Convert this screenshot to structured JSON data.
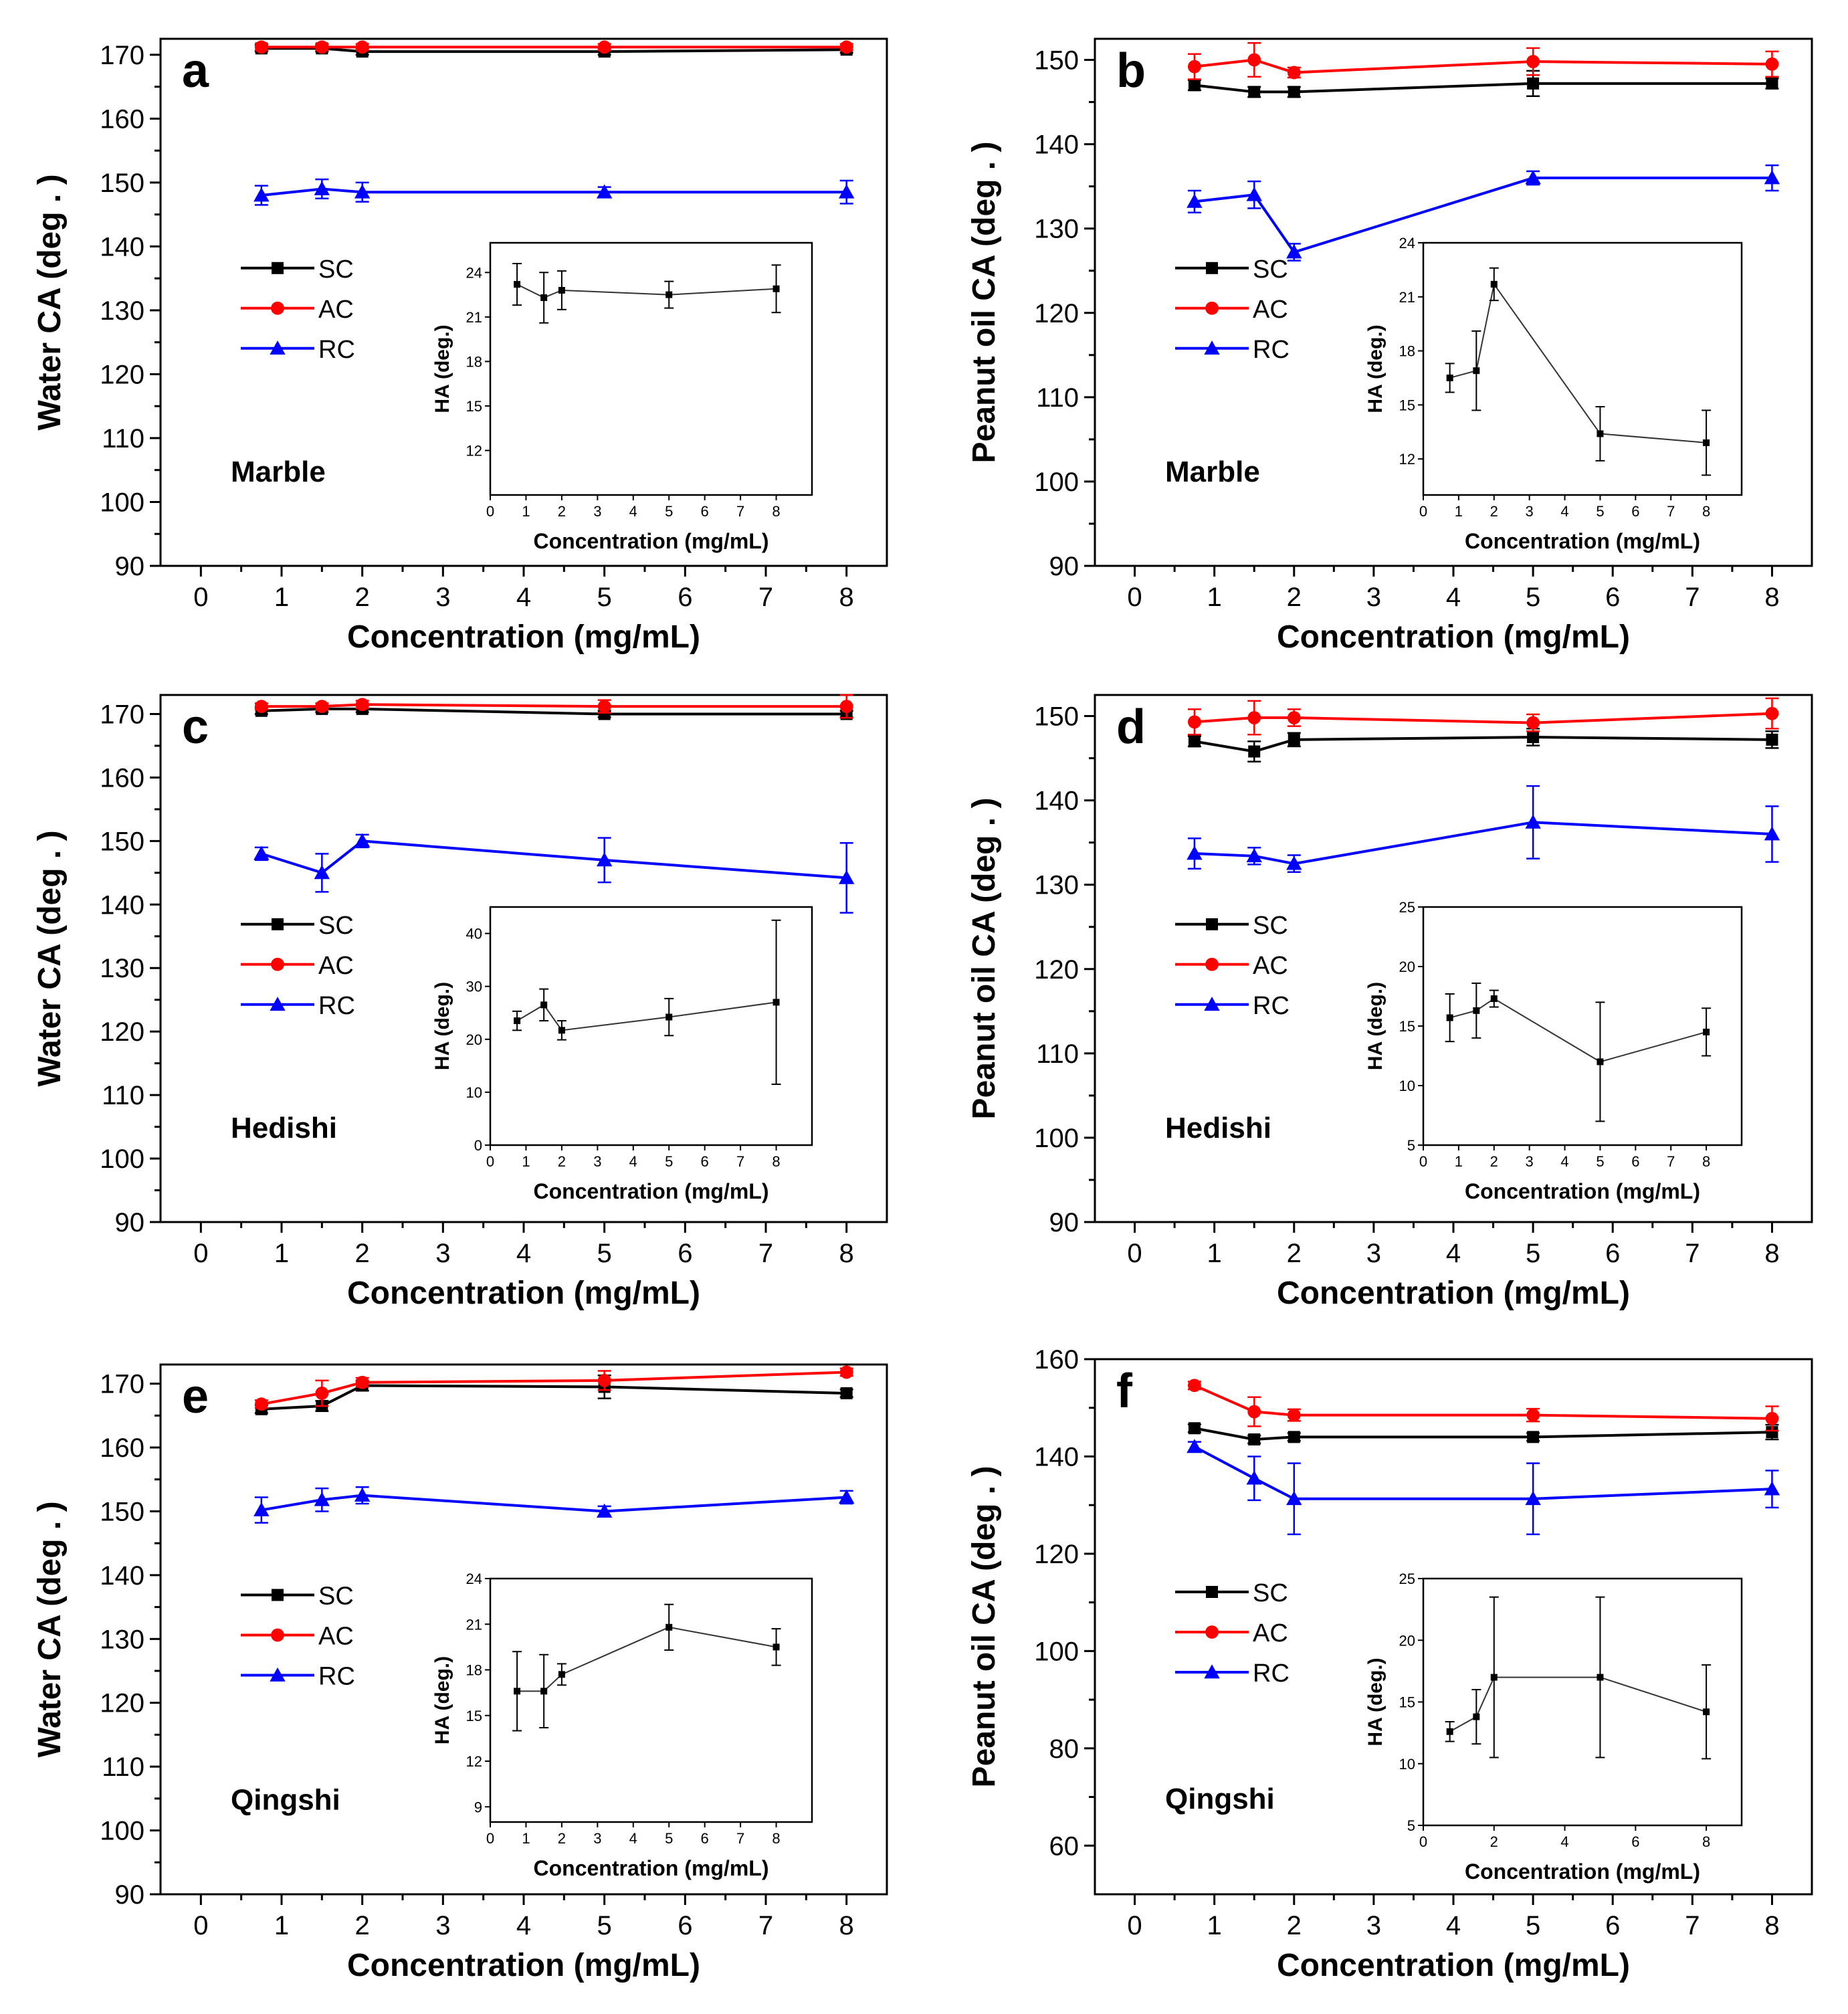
{
  "figure": {
    "title": "",
    "legend_labels": [
      "SC",
      "AC",
      "RC"
    ],
    "series_colors": {
      "SC": "#000000",
      "AC": "#ff0000",
      "RC": "#0000ff"
    },
    "inset_color": "#333333"
  },
  "chart_data": [
    {
      "type": "line",
      "panel_letter": "a",
      "stone_label": "Marble",
      "xlabel": "Concentration (mg/mL)",
      "ylabel": "Water CA (deg . )",
      "xlim": [
        -0.5,
        8.5
      ],
      "ylim": [
        90,
        172.5
      ],
      "xticks": [
        0,
        1,
        2,
        3,
        4,
        5,
        6,
        7,
        8
      ],
      "yticks": [
        90,
        100,
        110,
        120,
        130,
        140,
        150,
        160,
        170
      ],
      "x": [
        0.75,
        1.5,
        2,
        5,
        8
      ],
      "series": [
        {
          "name": "SC",
          "values": [
            171,
            171,
            170.5,
            170.5,
            170.8
          ],
          "errors": [
            0.5,
            0.5,
            0.5,
            0.5,
            0.5
          ]
        },
        {
          "name": "AC",
          "values": [
            171.2,
            171.2,
            171.2,
            171.2,
            171.2
          ],
          "errors": [
            0.5,
            0.5,
            0.5,
            0.5,
            0.5
          ]
        },
        {
          "name": "RC",
          "values": [
            148,
            149,
            148.5,
            148.5,
            148.5
          ],
          "errors": [
            1.5,
            1.5,
            1.5,
            0.8,
            1.8
          ]
        }
      ],
      "inset": {
        "xlabel": "Concentration (mg/mL)",
        "ylabel": "HA (deg.)",
        "xlim": [
          0,
          9
        ],
        "ylim": [
          9,
          26
        ],
        "xticks": [
          0,
          1,
          2,
          3,
          4,
          5,
          6,
          7,
          8
        ],
        "yticks": [
          12,
          15,
          18,
          21,
          24
        ],
        "x": [
          0.75,
          1.5,
          2,
          5,
          8
        ],
        "values": [
          23.2,
          22.3,
          22.8,
          22.5,
          22.9
        ],
        "errors": [
          1.4,
          1.7,
          1.3,
          0.9,
          1.6
        ]
      }
    },
    {
      "type": "line",
      "panel_letter": "b",
      "stone_label": "Marble",
      "xlabel": "Concentration (mg/mL)",
      "ylabel": "Peanut oil CA (deg . )",
      "xlim": [
        -0.5,
        8.5
      ],
      "ylim": [
        90,
        152.5
      ],
      "xticks": [
        0,
        1,
        2,
        3,
        4,
        5,
        6,
        7,
        8
      ],
      "yticks": [
        90,
        100,
        110,
        120,
        130,
        140,
        150
      ],
      "x": [
        0.75,
        1.5,
        2,
        5,
        8
      ],
      "series": [
        {
          "name": "SC",
          "values": [
            147,
            146.2,
            146.2,
            147.2,
            147.2
          ],
          "errors": [
            0.6,
            0.6,
            0.6,
            1.5,
            0.6
          ]
        },
        {
          "name": "AC",
          "values": [
            149.2,
            150,
            148.5,
            149.8,
            149.5
          ],
          "errors": [
            1.5,
            2,
            0.6,
            1.6,
            1.5
          ]
        },
        {
          "name": "RC",
          "values": [
            133.2,
            134,
            127.2,
            136,
            136
          ],
          "errors": [
            1.3,
            1.6,
            1,
            0.8,
            1.5
          ]
        }
      ],
      "inset": {
        "xlabel": "Concentration (mg/mL)",
        "ylabel": "HA (deg.)",
        "xlim": [
          0,
          9
        ],
        "ylim": [
          10,
          24
        ],
        "xticks": [
          0,
          1,
          2,
          3,
          4,
          5,
          6,
          7,
          8
        ],
        "yticks": [
          12,
          15,
          18,
          21,
          24
        ],
        "x": [
          0.75,
          1.5,
          2,
          5,
          8
        ],
        "values": [
          16.5,
          16.9,
          21.7,
          13.4,
          12.9
        ],
        "errors": [
          0.8,
          2.2,
          0.9,
          1.5,
          1.8
        ]
      }
    },
    {
      "type": "line",
      "panel_letter": "c",
      "stone_label": "Hedishi",
      "xlabel": "Concentration (mg/mL)",
      "ylabel": "Water CA (deg . )",
      "xlim": [
        -0.5,
        8.5
      ],
      "ylim": [
        90,
        173
      ],
      "xticks": [
        0,
        1,
        2,
        3,
        4,
        5,
        6,
        7,
        8
      ],
      "yticks": [
        90,
        100,
        110,
        120,
        130,
        140,
        150,
        160,
        170
      ],
      "x": [
        0.75,
        1.5,
        2,
        5,
        8
      ],
      "series": [
        {
          "name": "SC",
          "values": [
            170.5,
            170.8,
            170.8,
            170,
            170
          ],
          "errors": [
            0.5,
            0.5,
            0.5,
            0.5,
            0.5
          ]
        },
        {
          "name": "AC",
          "values": [
            171.2,
            171.2,
            171.5,
            171.2,
            171.2
          ],
          "errors": [
            0.5,
            0.5,
            0.6,
            1,
            1.8
          ]
        },
        {
          "name": "RC",
          "values": [
            148,
            145,
            150,
            147,
            144.2
          ],
          "errors": [
            1,
            3,
            1,
            3.5,
            5.5
          ]
        }
      ],
      "inset": {
        "xlabel": "Concentration (mg/mL)",
        "ylabel": "HA (deg.)",
        "xlim": [
          0,
          9
        ],
        "ylim": [
          0,
          45
        ],
        "xticks": [
          0,
          1,
          2,
          3,
          4,
          5,
          6,
          7,
          8
        ],
        "yticks": [
          0,
          10,
          20,
          30,
          40
        ],
        "x": [
          0.75,
          1.5,
          2,
          5,
          8
        ],
        "values": [
          23.5,
          26.5,
          21.7,
          24.2,
          27
        ],
        "errors": [
          1.8,
          3,
          1.8,
          3.5,
          15.5
        ]
      }
    },
    {
      "type": "line",
      "panel_letter": "d",
      "stone_label": "Hedishi",
      "xlabel": "Concentration (mg/mL)",
      "ylabel": "Peanut oil CA (deg . )",
      "xlim": [
        -0.5,
        8.5
      ],
      "ylim": [
        90,
        152.5
      ],
      "xticks": [
        0,
        1,
        2,
        3,
        4,
        5,
        6,
        7,
        8
      ],
      "yticks": [
        90,
        100,
        110,
        120,
        130,
        140,
        150
      ],
      "x": [
        0.75,
        1.5,
        2,
        5,
        8
      ],
      "series": [
        {
          "name": "SC",
          "values": [
            147,
            145.8,
            147.2,
            147.5,
            147.2
          ],
          "errors": [
            0.6,
            1.2,
            0.8,
            1,
            1
          ]
        },
        {
          "name": "AC",
          "values": [
            149.3,
            149.8,
            149.8,
            149.2,
            150.3
          ],
          "errors": [
            1.5,
            2,
            1,
            1,
            1.8
          ]
        },
        {
          "name": "RC",
          "values": [
            133.7,
            133.4,
            132.5,
            137.4,
            136
          ],
          "errors": [
            1.8,
            1,
            1,
            4.3,
            3.3
          ]
        }
      ],
      "inset": {
        "xlabel": "Concentration (mg/mL)",
        "ylabel": "HA (deg.)",
        "xlim": [
          0,
          9
        ],
        "ylim": [
          5,
          25
        ],
        "xticks": [
          0,
          1,
          2,
          3,
          4,
          5,
          6,
          7,
          8
        ],
        "yticks": [
          5,
          10,
          15,
          20,
          25
        ],
        "x": [
          0.75,
          1.5,
          2,
          5,
          8
        ],
        "values": [
          15.7,
          16.3,
          17.3,
          12,
          14.5
        ],
        "errors": [
          2,
          2.3,
          0.7,
          5,
          2
        ]
      }
    },
    {
      "type": "line",
      "panel_letter": "e",
      "stone_label": "Qingshi",
      "xlabel": "Concentration (mg/mL)",
      "ylabel": "Water CA (deg . )",
      "xlim": [
        -0.5,
        8.5
      ],
      "ylim": [
        90,
        173
      ],
      "xticks": [
        0,
        1,
        2,
        3,
        4,
        5,
        6,
        7,
        8
      ],
      "yticks": [
        90,
        100,
        110,
        120,
        130,
        140,
        150,
        160,
        170
      ],
      "x": [
        0.75,
        1.5,
        2,
        5,
        8
      ],
      "series": [
        {
          "name": "SC",
          "values": [
            166,
            166.5,
            169.7,
            169.5,
            168.5
          ],
          "errors": [
            0.6,
            0.8,
            0.8,
            1.8,
            0.6
          ]
        },
        {
          "name": "AC",
          "values": [
            166.8,
            168.5,
            170.2,
            170.5,
            171.8
          ],
          "errors": [
            0.6,
            2,
            0.7,
            1.5,
            0.6
          ]
        },
        {
          "name": "RC",
          "values": [
            150.2,
            151.8,
            152.5,
            150,
            152.2
          ],
          "errors": [
            2,
            1.8,
            1.3,
            0.8,
            1
          ]
        }
      ],
      "inset": {
        "xlabel": "Concentration (mg/mL)",
        "ylabel": "HA (deg.)",
        "xlim": [
          0,
          9
        ],
        "ylim": [
          8,
          24
        ],
        "xticks": [
          0,
          1,
          2,
          3,
          4,
          5,
          6,
          7,
          8
        ],
        "yticks": [
          9,
          12,
          15,
          18,
          21,
          24
        ],
        "x": [
          0.75,
          1.5,
          2,
          5,
          8
        ],
        "values": [
          16.6,
          16.6,
          17.7,
          20.8,
          19.5
        ],
        "errors": [
          2.6,
          2.4,
          0.7,
          1.5,
          1.2
        ]
      }
    },
    {
      "type": "line",
      "panel_letter": "f",
      "stone_label": "Qingshi",
      "xlabel": "Concentration (mg/mL)",
      "ylabel": "Peanut oil CA (deg . )",
      "xlim": [
        -0.5,
        8.5
      ],
      "ylim": [
        50,
        160
      ],
      "xticks": [
        0,
        1,
        2,
        3,
        4,
        5,
        6,
        7,
        8
      ],
      "yticks": [
        60,
        80,
        100,
        120,
        140,
        160
      ],
      "x": [
        0.75,
        1.5,
        2,
        5,
        8
      ],
      "series": [
        {
          "name": "SC",
          "values": [
            145.8,
            143.5,
            144,
            144,
            145
          ],
          "errors": [
            0.8,
            0.8,
            0.8,
            0.8,
            1.5
          ]
        },
        {
          "name": "AC",
          "values": [
            154.6,
            149.2,
            148.5,
            148.5,
            147.8
          ],
          "errors": [
            0.8,
            3,
            1.2,
            1.3,
            2.5
          ]
        },
        {
          "name": "RC",
          "values": [
            142,
            135.5,
            131.3,
            131.3,
            133.3
          ],
          "errors": [
            1,
            4.5,
            7.3,
            7.3,
            3.8
          ]
        }
      ],
      "inset": {
        "xlabel": "Concentration (mg/mL)",
        "ylabel": "HA (deg.)",
        "xlim": [
          0,
          9
        ],
        "ylim": [
          5,
          25
        ],
        "xticks": [
          0,
          2,
          4,
          6,
          8
        ],
        "yticks": [
          5,
          10,
          15,
          20,
          25
        ],
        "x": [
          0.75,
          1.5,
          2,
          5,
          8
        ],
        "values": [
          12.6,
          13.8,
          17,
          17,
          14.2
        ],
        "errors": [
          0.8,
          2.2,
          6.5,
          6.5,
          3.8
        ]
      }
    }
  ]
}
